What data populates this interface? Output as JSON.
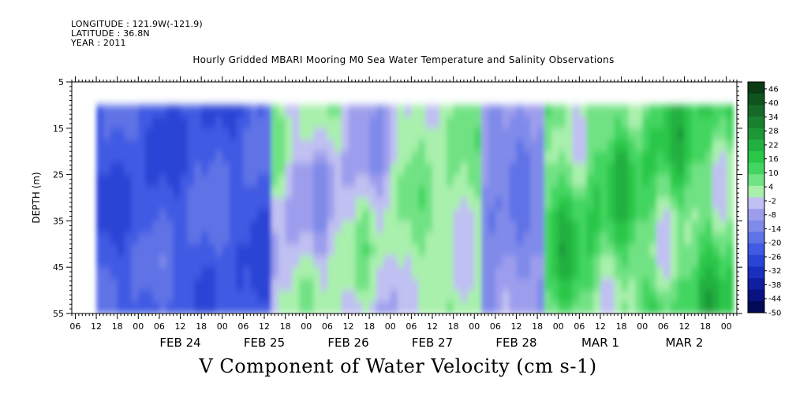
{
  "header": {
    "longitude": "LONGITUDE : 121.9W(-121.9)",
    "latitude": "LATITUDE : 36.8N",
    "year": "YEAR : 2011",
    "title": "Hourly Gridded MBARI Mooring M0 Sea Water Temperature and Salinity Observations",
    "variable_title": "V Component of Water Velocity (cm s-1)"
  },
  "chart_data": {
    "type": "heatmap",
    "title": "Hourly Gridded MBARI Mooring M0 Sea Water Temperature and Salinity Observations",
    "subtitle": "V Component of Water Velocity (cm s-1)",
    "ylabel": "DEPTH (m)",
    "y_axis": {
      "ticks": [
        5,
        15,
        25,
        35,
        45,
        55
      ],
      "range": [
        5,
        55
      ],
      "inverted": true
    },
    "x_axis": {
      "start": "2011-02-23T05:00",
      "end": "2011-03-03T03:00",
      "hour_ticks": [
        "06",
        "12",
        "18",
        "00",
        "06",
        "12",
        "18",
        "00",
        "06",
        "12",
        "18",
        "00",
        "06",
        "12",
        "18",
        "00",
        "06",
        "12",
        "18",
        "00",
        "06",
        "12",
        "18",
        "00",
        "06",
        "12",
        "18",
        "00",
        "06",
        "12",
        "18",
        "00"
      ],
      "day_labels": [
        "FEB 24",
        "FEB 25",
        "FEB 26",
        "FEB 27",
        "FEB 28",
        "MAR  1",
        "MAR  2"
      ]
    },
    "data_extent": {
      "time_start": "2011-02-23T12:00",
      "time_end": "2011-03-03T02:00",
      "depth_min": 10,
      "depth_max": 55
    },
    "colorbar": {
      "labels": [
        "46",
        "40",
        "34",
        "28",
        "22",
        "16",
        "10",
        "4",
        "-2",
        "-8",
        "-14",
        "-20",
        "-26",
        "-32",
        "-38",
        "-44",
        "-50"
      ],
      "range": [
        -50,
        49
      ],
      "colors": [
        "#0b3a14",
        "#10531f",
        "#156a28",
        "#198030",
        "#1d9838",
        "#22b040",
        "#29c648",
        "#43d561",
        "#71e284",
        "#a8f0ac",
        "#c0c0f2",
        "#9d9ded",
        "#7f8ae9",
        "#5f72e6",
        "#3f5ae3",
        "#2a45d6",
        "#1a2fc0",
        "#101ea0",
        "#081280",
        "#020a55"
      ]
    },
    "field_regions": [
      {
        "from": "2011-02-23T12:00",
        "to": "2011-02-25T12:00",
        "v_range": [
          -30,
          -15
        ],
        "note": "strong southward"
      },
      {
        "from": "2011-02-25T12:00",
        "to": "2011-02-27T00:00",
        "v_range": [
          -15,
          10
        ]
      },
      {
        "from": "2011-02-27T00:00",
        "to": "2011-02-28T00:00",
        "v_range": [
          -5,
          10
        ]
      },
      {
        "from": "2011-02-28T00:00",
        "to": "2011-02-28T18:00",
        "v_range": [
          -20,
          -5
        ]
      },
      {
        "from": "2011-02-28T18:00",
        "to": "2011-03-03T02:00",
        "v_range": [
          -5,
          25
        ],
        "note": "mostly northward"
      }
    ]
  }
}
